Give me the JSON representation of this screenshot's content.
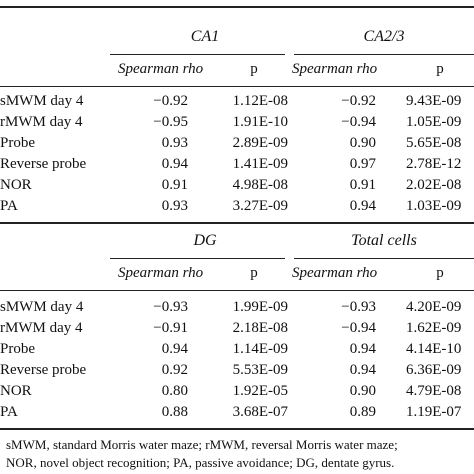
{
  "blocks": [
    {
      "groups": [
        "CA1",
        "CA2/3"
      ],
      "subheaders": [
        "Spearman rho",
        "p",
        "Spearman rho",
        "p"
      ],
      "rows": [
        {
          "label": "sMWM day 4",
          "v": [
            "−0.92",
            "1.12E-08",
            "−0.92",
            "9.43E-09"
          ]
        },
        {
          "label": "rMWM day 4",
          "v": [
            "−0.95",
            "1.91E-10",
            "−0.94",
            "1.05E-09"
          ]
        },
        {
          "label": "Probe",
          "v": [
            "0.93",
            "2.89E-09",
            "0.90",
            "5.65E-08"
          ]
        },
        {
          "label": "Reverse probe",
          "v": [
            "0.94",
            "1.41E-09",
            "0.97",
            "2.78E-12"
          ]
        },
        {
          "label": "NOR",
          "v": [
            "0.91",
            "4.98E-08",
            "0.91",
            "2.02E-08"
          ]
        },
        {
          "label": "PA",
          "v": [
            "0.93",
            "3.27E-09",
            "0.94",
            "1.03E-09"
          ]
        }
      ]
    },
    {
      "groups": [
        "DG",
        "Total cells"
      ],
      "subheaders": [
        "Spearman rho",
        "p",
        "Spearman rho",
        "p"
      ],
      "rows": [
        {
          "label": "sMWM day 4",
          "v": [
            "−0.93",
            "1.99E-09",
            "−0.93",
            "4.20E-09"
          ]
        },
        {
          "label": "rMWM day 4",
          "v": [
            "−0.91",
            "2.18E-08",
            "−0.94",
            "1.62E-09"
          ]
        },
        {
          "label": "Probe",
          "v": [
            "0.94",
            "1.14E-09",
            "0.94",
            "4.14E-10"
          ]
        },
        {
          "label": "Reverse probe",
          "v": [
            "0.92",
            "5.53E-09",
            "0.94",
            "6.36E-09"
          ]
        },
        {
          "label": "NOR",
          "v": [
            "0.80",
            "1.92E-05",
            "0.90",
            "4.79E-08"
          ]
        },
        {
          "label": "PA",
          "v": [
            "0.88",
            "3.68E-07",
            "0.89",
            "1.19E-07"
          ]
        }
      ]
    }
  ],
  "footnote": [
    "sMWM, standard Morris water maze; rMWM, reversal Morris water maze;",
    "NOR, novel object recognition; PA, passive avoidance; DG, dentate gyrus."
  ]
}
